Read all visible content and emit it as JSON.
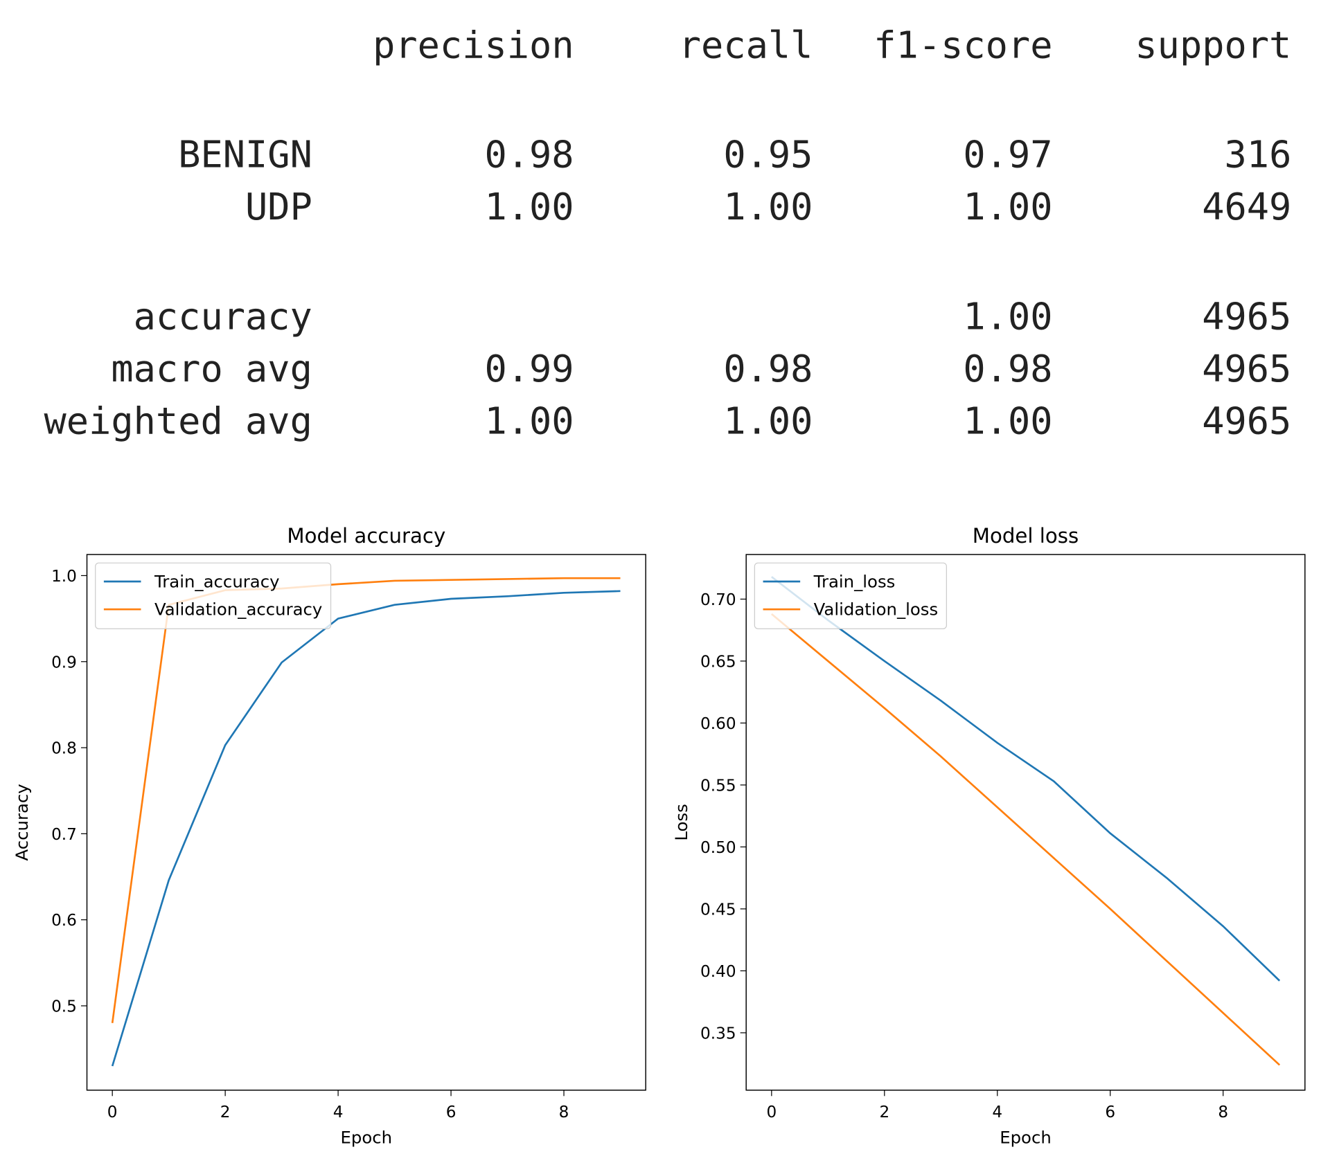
{
  "report": {
    "columns": [
      "precision",
      "recall",
      "f1-score",
      "support"
    ],
    "rows": [
      {
        "label": "BENIGN",
        "precision": "0.98",
        "recall": "0.95",
        "f1-score": "0.97",
        "support": "316"
      },
      {
        "label": "UDP",
        "precision": "1.00",
        "recall": "1.00",
        "f1-score": "1.00",
        "support": "4649"
      },
      {
        "label": "accuracy",
        "f1-score": "1.00",
        "support": "4965"
      },
      {
        "label": "macro avg",
        "precision": "0.99",
        "recall": "0.98",
        "f1-score": "0.98",
        "support": "4965"
      },
      {
        "label": "weighted avg",
        "precision": "1.00",
        "recall": "1.00",
        "f1-score": "1.00",
        "support": "4965"
      }
    ]
  },
  "chart_data": [
    {
      "type": "line",
      "title": "Model accuracy",
      "x_label": "Epoch",
      "y_label": "Accuracy",
      "x": [
        0,
        1,
        2,
        3,
        4,
        5,
        6,
        7,
        8,
        9
      ],
      "series": [
        {
          "name": "Train_accuracy",
          "color": "#1f77b4",
          "values": [
            0.43,
            0.646,
            0.803,
            0.899,
            0.95,
            0.966,
            0.973,
            0.976,
            0.98,
            0.982
          ]
        },
        {
          "name": "Validation_accuracy",
          "color": "#ff7f0e",
          "values": [
            0.48,
            0.966,
            0.983,
            0.985,
            0.99,
            0.994,
            0.995,
            0.996,
            0.997,
            0.997
          ]
        }
      ],
      "xlim": [
        -0.45,
        9.45
      ],
      "xticks": [
        0,
        2,
        4,
        6,
        8
      ],
      "ylim": [
        0.402,
        1.0245
      ],
      "yticks": [
        0.5,
        0.6,
        0.7,
        0.8,
        0.9,
        {
          "value": 1,
          "label": "1.0"
        }
      ],
      "legend": "upper left"
    },
    {
      "type": "line",
      "title": "Model loss",
      "x_label": "Epoch",
      "y_label": "Loss",
      "x": [
        0,
        1,
        2,
        3,
        4,
        5,
        6,
        7,
        8,
        9
      ],
      "series": [
        {
          "name": "Train_loss",
          "color": "#1f77b4",
          "values": [
            0.718,
            0.683,
            0.65,
            0.618,
            0.584,
            0.553,
            0.511,
            0.475,
            0.436,
            0.392
          ]
        },
        {
          "name": "Validation_loss",
          "color": "#ff7f0e",
          "values": [
            0.688,
            0.65,
            0.612,
            0.573,
            0.532,
            0.491,
            0.45,
            0.408,
            0.366,
            0.324
          ]
        }
      ],
      "xlim": [
        -0.45,
        9.45
      ],
      "xticks": [
        0,
        2,
        4,
        6,
        8
      ],
      "ylim": [
        0.3037,
        0.736
      ],
      "yticks": [
        {
          "value": 0.35,
          "label": "0.35"
        },
        {
          "value": 0.4,
          "label": "0.40"
        },
        {
          "value": 0.45,
          "label": "0.45"
        },
        {
          "value": 0.5,
          "label": "0.50"
        },
        {
          "value": 0.55,
          "label": "0.55"
        },
        {
          "value": 0.6,
          "label": "0.60"
        },
        {
          "value": 0.65,
          "label": "0.65"
        },
        {
          "value": 0.7,
          "label": "0.70"
        }
      ],
      "legend": "upper left"
    }
  ]
}
